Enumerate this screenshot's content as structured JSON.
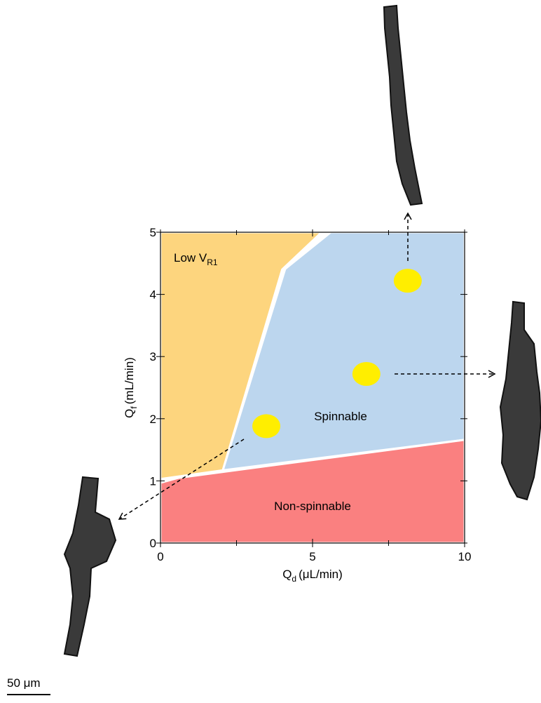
{
  "chart_data": {
    "type": "phase-diagram",
    "x_label": {
      "main": "Q",
      "sub": "d",
      "unit": "(μL/min)"
    },
    "y_label": {
      "main": "Q",
      "sub": "f",
      "unit": "(mL/min)"
    },
    "xlim": [
      0,
      10
    ],
    "ylim": [
      0,
      5
    ],
    "xticks": [
      0,
      5,
      10
    ],
    "yticks": [
      0,
      1,
      2,
      3,
      4,
      5
    ],
    "x_minor_ticks": [
      2.5,
      7.5
    ],
    "regions": [
      {
        "label": "Low V",
        "label_sub": "R1",
        "color": "#fdd57e",
        "points": [
          [
            0,
            5
          ],
          [
            5.3,
            5
          ],
          [
            4.0,
            4.4
          ],
          [
            2.05,
            1.17
          ],
          [
            0,
            1.03
          ]
        ]
      },
      {
        "label": "Spinnable",
        "color": "#bcd6ee",
        "points": [
          [
            2.05,
            1.17
          ],
          [
            4.1,
            4.41
          ],
          [
            5.6,
            5
          ],
          [
            10,
            5
          ],
          [
            10,
            1.66
          ]
        ]
      },
      {
        "label": "Non-spinnable",
        "color": "#fa8080",
        "points": [
          [
            0,
            0
          ],
          [
            10,
            0
          ],
          [
            10,
            1.66
          ],
          [
            0.6,
            1.05
          ],
          [
            0,
            0.97
          ]
        ]
      }
    ],
    "points": {
      "color": "#ffee00",
      "x": [
        3.48,
        6.77,
        8.13
      ],
      "y": [
        1.88,
        2.72,
        4.22
      ]
    },
    "scale_bar": "50 μm"
  }
}
